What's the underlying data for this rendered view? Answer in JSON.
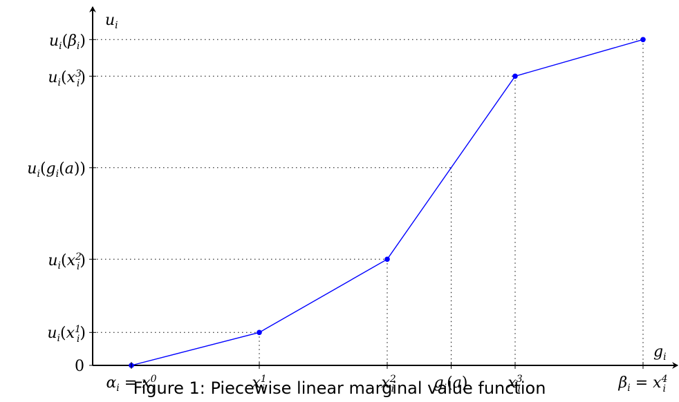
{
  "chart_data": {
    "type": "line",
    "xlabel": "g_i",
    "ylabel": "u_i",
    "x_ticks": [
      {
        "x": 0,
        "label": "α_i = x_i^0"
      },
      {
        "x": 1,
        "label": "x_i^1"
      },
      {
        "x": 2,
        "label": "x_i^2"
      },
      {
        "x": 2.5,
        "label": "g_i(a)"
      },
      {
        "x": 3,
        "label": "x_i^3"
      },
      {
        "x": 4,
        "label": "β_i = x_i^4"
      }
    ],
    "y_ticks": [
      {
        "y": 0,
        "label": "0"
      },
      {
        "y": 0.09,
        "label": "u_i(x_i^1)"
      },
      {
        "y": 0.29,
        "label": "u_i(x_i^2)"
      },
      {
        "y": 0.54,
        "label": "u_i(g_i(a))"
      },
      {
        "y": 0.79,
        "label": "u_i(x_i^3)"
      },
      {
        "y": 0.89,
        "label": "u_i(β_i)"
      }
    ],
    "series": [
      {
        "x": [
          0,
          1,
          2,
          3,
          4
        ],
        "values": [
          0,
          0.09,
          0.29,
          0.79,
          0.89
        ]
      }
    ],
    "marker_points": [
      0,
      1,
      2,
      3,
      4
    ],
    "guides": "dotted",
    "xlim": [
      -0.3,
      4.33
    ],
    "ylim": [
      0,
      1.0
    ],
    "line_color": "#0000ff",
    "caption": "Figure 1: Piecewise linear marginal value function"
  }
}
